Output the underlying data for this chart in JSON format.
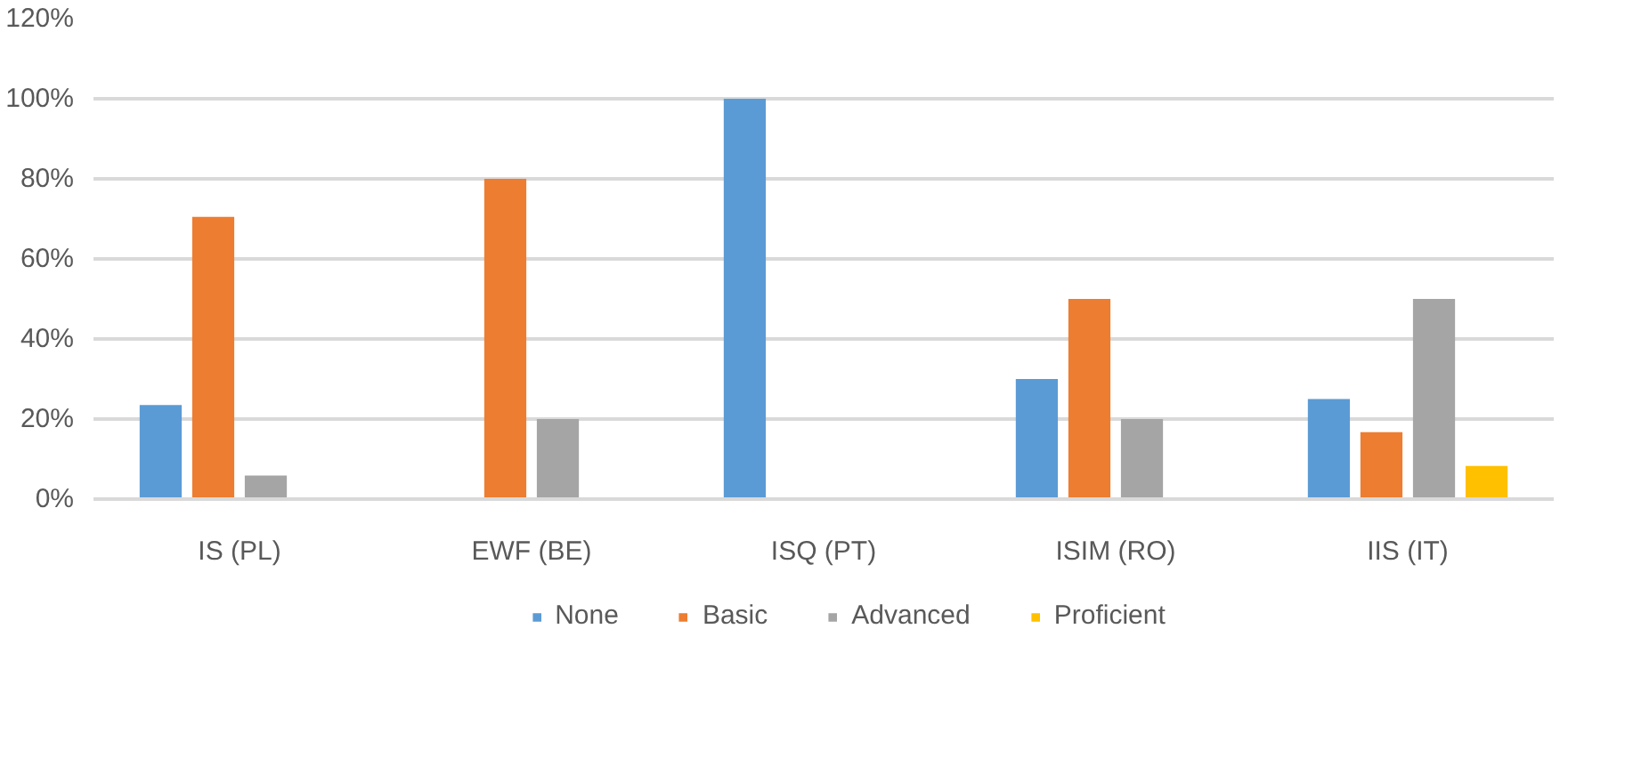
{
  "chart_data": {
    "type": "bar",
    "categories": [
      "IS (PL)",
      "EWF (BE)",
      "ISQ (PT)",
      "ISIM (RO)",
      "IIS (IT)"
    ],
    "series": [
      {
        "name": "None",
        "color": "#5b9bd5",
        "values": [
          23.5,
          0,
          100,
          30,
          25
        ]
      },
      {
        "name": "Basic",
        "color": "#ed7d31",
        "values": [
          70.5,
          80,
          0,
          50,
          16.7
        ]
      },
      {
        "name": "Advanced",
        "color": "#a5a5a5",
        "values": [
          5.9,
          20,
          0,
          20,
          50
        ]
      },
      {
        "name": "Proficient",
        "color": "#ffc000",
        "values": [
          0,
          0,
          0,
          0,
          8.3
        ]
      }
    ],
    "ylim": [
      0,
      120
    ],
    "yticks": [
      {
        "value": 0,
        "label": "0%"
      },
      {
        "value": 20,
        "label": "20%"
      },
      {
        "value": 40,
        "label": "40%"
      },
      {
        "value": 60,
        "label": "60%"
      },
      {
        "value": 80,
        "label": "80%"
      },
      {
        "value": 100,
        "label": "100%"
      },
      {
        "value": 120,
        "label": "120%"
      }
    ],
    "grid": "y",
    "legend": "bottom"
  }
}
